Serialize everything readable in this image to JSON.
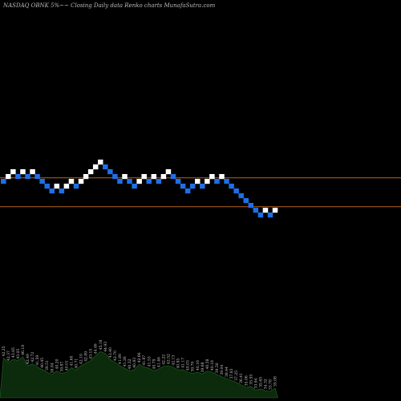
{
  "page": {
    "title": "NASDAQ OBNK 5%~~ Closing Daily data Renko charts MunafaSutra.com"
  },
  "chart_data": {
    "type": "renko",
    "title": "NASDAQ OBNK 5%~~ Closing Daily data Renko charts MunafaSutra.com",
    "colors": {
      "background": "#000000",
      "up_brick": "#ffffff",
      "down_brick": "#1e6fe6",
      "reference_line": "#b8621b",
      "volume_area": "#0c2a0c"
    },
    "bricks": [
      {
        "dir": "down",
        "level": 0
      },
      {
        "dir": "up",
        "level": 1
      },
      {
        "dir": "up",
        "level": 2
      },
      {
        "dir": "down",
        "level": 1
      },
      {
        "dir": "up",
        "level": 2
      },
      {
        "dir": "down",
        "level": 1
      },
      {
        "dir": "up",
        "level": 2
      },
      {
        "dir": "down",
        "level": 1
      },
      {
        "dir": "down",
        "level": 0
      },
      {
        "dir": "down",
        "level": -1
      },
      {
        "dir": "down",
        "level": -2
      },
      {
        "dir": "up",
        "level": -1
      },
      {
        "dir": "down",
        "level": -2
      },
      {
        "dir": "up",
        "level": -1
      },
      {
        "dir": "up",
        "level": 0
      },
      {
        "dir": "down",
        "level": -1
      },
      {
        "dir": "up",
        "level": 0
      },
      {
        "dir": "up",
        "level": 1
      },
      {
        "dir": "up",
        "level": 2
      },
      {
        "dir": "up",
        "level": 3
      },
      {
        "dir": "up",
        "level": 4
      },
      {
        "dir": "down",
        "level": 3
      },
      {
        "dir": "down",
        "level": 2
      },
      {
        "dir": "down",
        "level": 1
      },
      {
        "dir": "down",
        "level": 0
      },
      {
        "dir": "up",
        "level": 1
      },
      {
        "dir": "down",
        "level": 0
      },
      {
        "dir": "down",
        "level": -1
      },
      {
        "dir": "up",
        "level": 0
      },
      {
        "dir": "up",
        "level": 1
      },
      {
        "dir": "down",
        "level": 0
      },
      {
        "dir": "up",
        "level": 1
      },
      {
        "dir": "down",
        "level": 0
      },
      {
        "dir": "up",
        "level": 1
      },
      {
        "dir": "up",
        "level": 2
      },
      {
        "dir": "down",
        "level": 1
      },
      {
        "dir": "down",
        "level": 0
      },
      {
        "dir": "down",
        "level": -1
      },
      {
        "dir": "down",
        "level": -2
      },
      {
        "dir": "down",
        "level": -1
      },
      {
        "dir": "up",
        "level": 0
      },
      {
        "dir": "down",
        "level": -1
      },
      {
        "dir": "up",
        "level": 0
      },
      {
        "dir": "up",
        "level": 1
      },
      {
        "dir": "down",
        "level": 0
      },
      {
        "dir": "up",
        "level": 1
      },
      {
        "dir": "down",
        "level": 0
      },
      {
        "dir": "down",
        "level": -1
      },
      {
        "dir": "down",
        "level": -2
      },
      {
        "dir": "down",
        "level": -3
      },
      {
        "dir": "down",
        "level": -4
      },
      {
        "dir": "down",
        "level": -5
      },
      {
        "dir": "down",
        "level": -6
      },
      {
        "dir": "down",
        "level": -7
      },
      {
        "dir": "up",
        "level": -6
      },
      {
        "dir": "down",
        "level": -7
      },
      {
        "dir": "up",
        "level": -6
      }
    ],
    "reference_levels": [
      0,
      -6
    ],
    "price_labels": [
      "42.25",
      "42.37",
      "43.85",
      "43.05",
      "46.18",
      "42.49",
      "42.72",
      "41.59",
      "40.45",
      "39.51",
      "38.84",
      "40.20",
      "39.87",
      "40.01",
      "41.60",
      "40.71",
      "42.10",
      "42.89",
      "43.15",
      "44.46",
      "45.18",
      "44.93",
      "43.40",
      "42.70",
      "41.89",
      "41.26",
      "40.32",
      "40.83",
      "42.66",
      "41.87",
      "41.53",
      "40.79",
      "41.46",
      "42.22",
      "42.52",
      "42.13",
      "40.95",
      "41.17",
      "40.03",
      "39.79",
      "40.16",
      "39.68",
      "40.58",
      "40.18",
      "39.50",
      "39.04",
      "38.44",
      "37.83",
      "37.25",
      "36.41",
      "35.06",
      "35.55",
      "33.94",
      "35.65",
      "34.32",
      "33.78",
      "35.08"
    ],
    "volume": [
      0.62,
      0.55,
      0.6,
      0.58,
      0.64,
      0.5,
      0.53,
      0.48,
      0.44,
      0.4,
      0.36,
      0.42,
      0.38,
      0.4,
      0.47,
      0.43,
      0.5,
      0.54,
      0.58,
      0.66,
      0.72,
      0.69,
      0.6,
      0.55,
      0.5,
      0.46,
      0.42,
      0.44,
      0.52,
      0.48,
      0.46,
      0.42,
      0.45,
      0.49,
      0.5,
      0.48,
      0.43,
      0.44,
      0.4,
      0.38,
      0.4,
      0.37,
      0.42,
      0.4,
      0.36,
      0.33,
      0.3,
      0.27,
      0.24,
      0.2,
      0.16,
      0.18,
      0.12,
      0.14,
      0.11,
      0.1,
      0.15
    ]
  }
}
